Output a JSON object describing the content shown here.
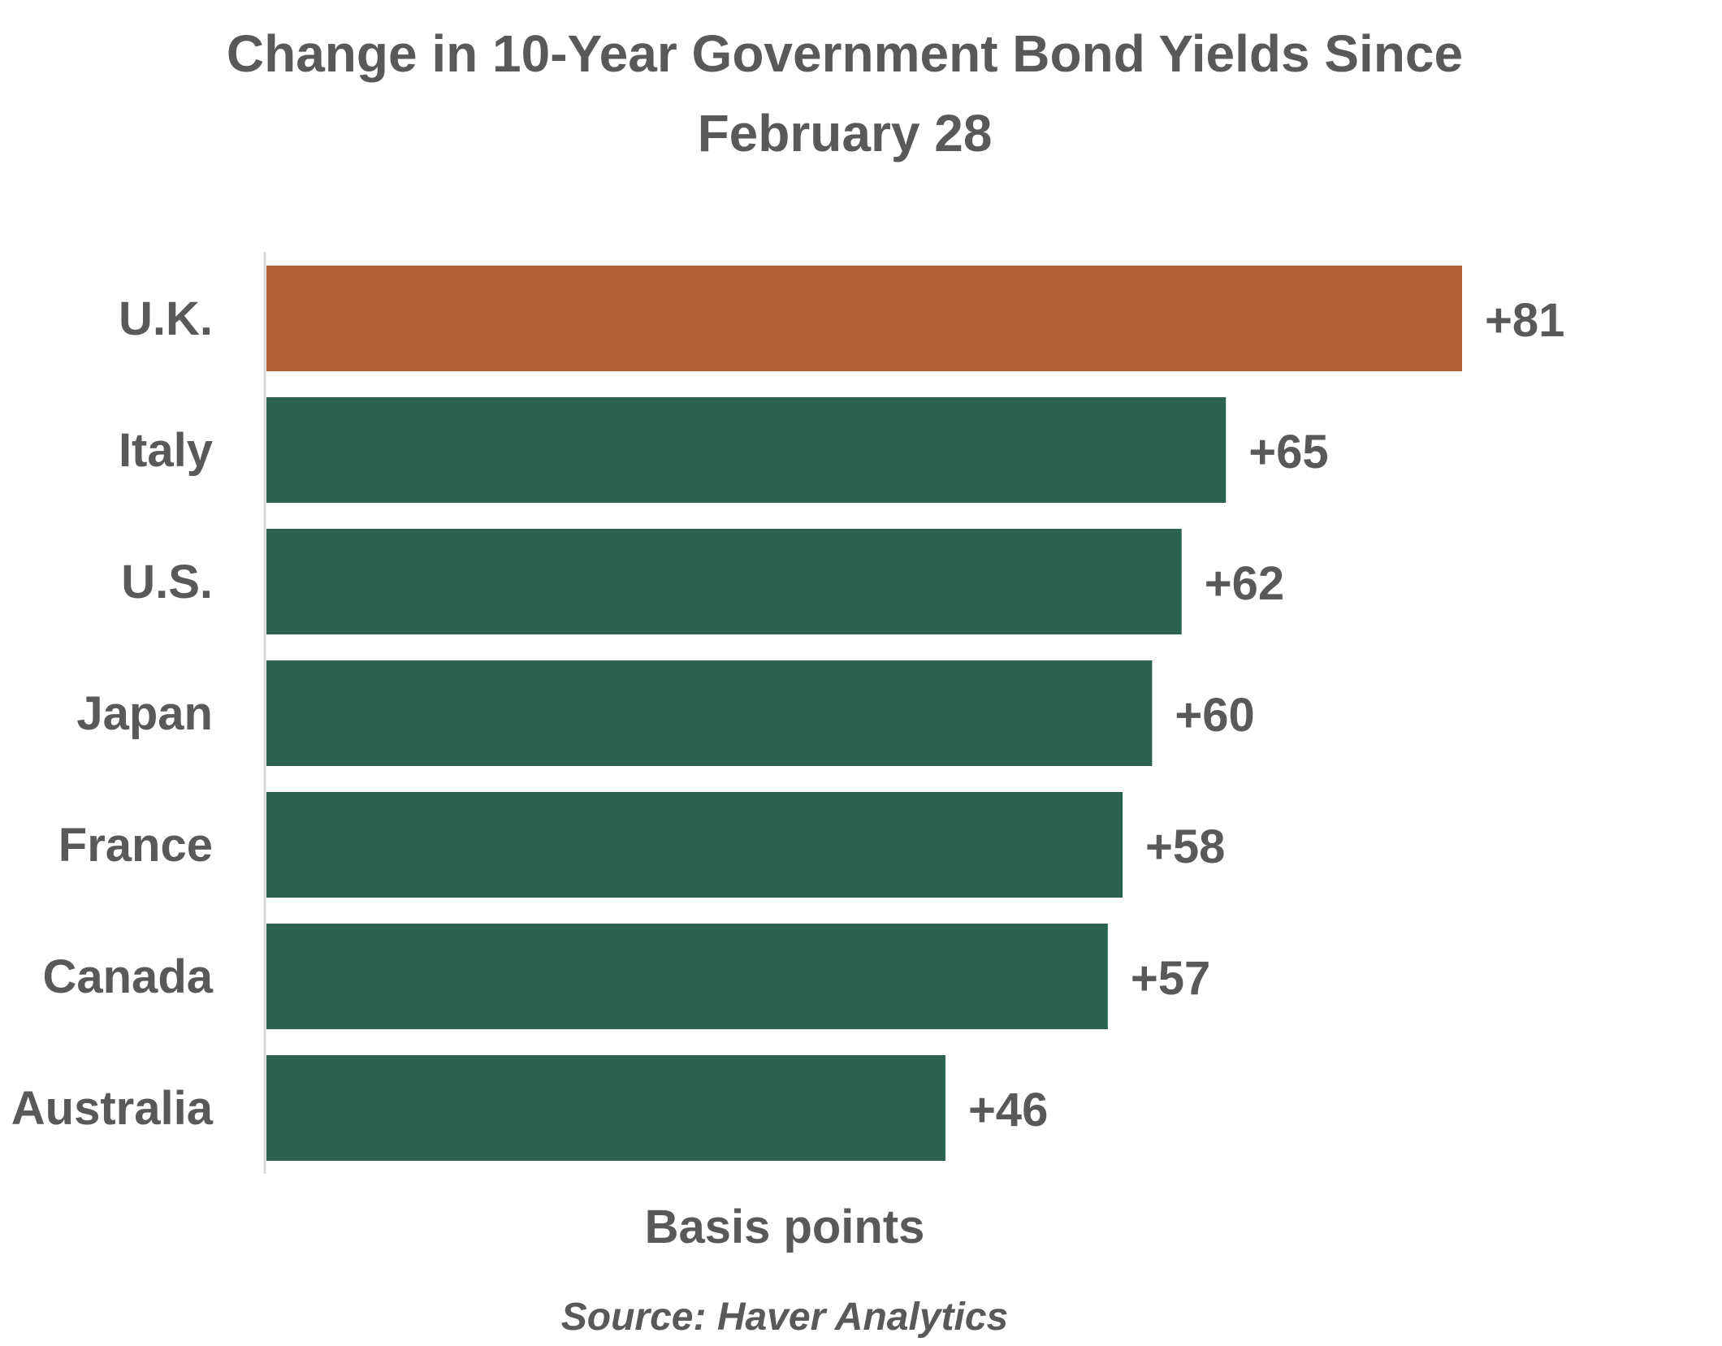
{
  "chart_data": {
    "type": "bar",
    "orientation": "horizontal",
    "title": "Change in 10-Year Government Bond Yields Since February 28",
    "title_lines": [
      "Change in 10-Year Government Bond Yields Since",
      "February 28"
    ],
    "xlabel": "Basis points",
    "ylabel": "",
    "source": "Source: Haver Analytics",
    "categories": [
      "U.K.",
      "Italy",
      "U.S.",
      "Japan",
      "France",
      "Canada",
      "Australia"
    ],
    "values": [
      81,
      65,
      62,
      60,
      58,
      57,
      46
    ],
    "data_labels": [
      "+81",
      "+65",
      "+62",
      "+60",
      "+58",
      "+57",
      "+46"
    ],
    "xlim": [
      0,
      81
    ],
    "grid": false,
    "legend": "none",
    "colors": {
      "highlight": "#b35f35",
      "default": "#2b6350",
      "text": "#595959",
      "axis": "#d9d9d9"
    },
    "highlight_category": "U.K."
  }
}
